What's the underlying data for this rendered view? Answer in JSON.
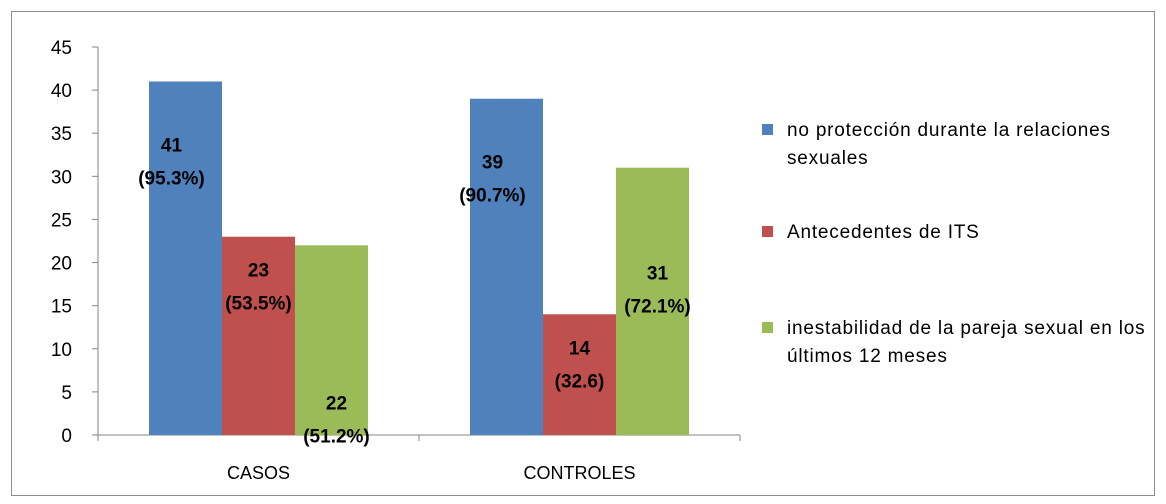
{
  "chart_data": {
    "type": "bar",
    "categories": [
      "CASOS",
      "CONTROLES"
    ],
    "series": [
      {
        "name": " no protección durante la relaciones sexuales",
        "color": "#4f81bd",
        "values": [
          41,
          39
        ],
        "labels": [
          [
            "41",
            "(95.3%)"
          ],
          [
            "39",
            "(90.7%)"
          ]
        ]
      },
      {
        "name": "Antecedentes de ITS",
        "color": "#c0504d",
        "values": [
          23,
          14
        ],
        "labels": [
          [
            "23",
            "(53.5%)"
          ],
          [
            "14",
            "(32.6)"
          ]
        ]
      },
      {
        "name": "inestabilidad de la pareja sexual en los últimos 12 meses",
        "color": "#9bbb59",
        "values": [
          22,
          31
        ],
        "labels": [
          [
            "22",
            "(51.2%)"
          ],
          [
            "31",
            "(72.1%)"
          ]
        ]
      }
    ],
    "yticks": [
      "0",
      "5",
      "10",
      "15",
      "20",
      "25",
      "30",
      "35",
      "40",
      "45"
    ],
    "ylim": [
      0,
      45
    ],
    "grid": false,
    "legend_position": "right",
    "title": "",
    "xlabel": "",
    "ylabel": ""
  }
}
